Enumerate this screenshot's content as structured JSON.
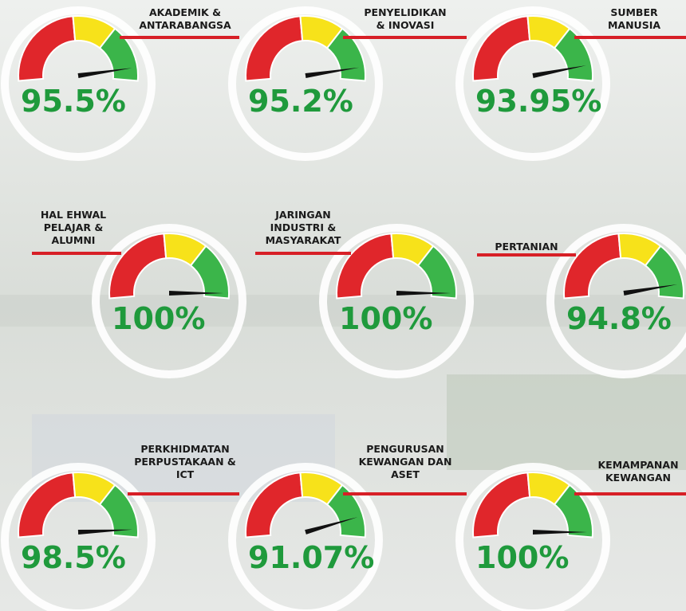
{
  "gauges": [
    {
      "label": [
        "AKADEMIK &",
        "ANTARABANGSA"
      ],
      "value": 95.5,
      "value_label": "95.5%"
    },
    {
      "label": [
        "PENYELIDIKAN",
        "& INOVASI"
      ],
      "value": 95.2,
      "value_label": "95.2%"
    },
    {
      "label": [
        "SUMBER",
        "MANUSIA"
      ],
      "value": 93.95,
      "value_label": "93.95%"
    },
    {
      "label": [
        "HAL EHWAL",
        "PELAJAR &",
        "ALUMNI"
      ],
      "value": 100,
      "value_label": "100%"
    },
    {
      "label": [
        "JARINGAN",
        "INDUSTRI &",
        "MASYARAKAT"
      ],
      "value": 100,
      "value_label": "100%"
    },
    {
      "label": [
        "PERTANIAN"
      ],
      "value": 94.8,
      "value_label": "94.8%"
    },
    {
      "label": [
        "PERKHIDMATAN",
        "PERPUSTAKAAN &",
        "ICT"
      ],
      "value": 98.5,
      "value_label": "98.5%"
    },
    {
      "label": [
        "PENGURUSAN",
        "KEWANGAN DAN",
        "ASET"
      ],
      "value": 91.07,
      "value_label": "91.07%"
    },
    {
      "label": [
        "KEMAMPANAN",
        "KEWANGAN"
      ],
      "value": 100,
      "value_label": "100%"
    }
  ]
}
